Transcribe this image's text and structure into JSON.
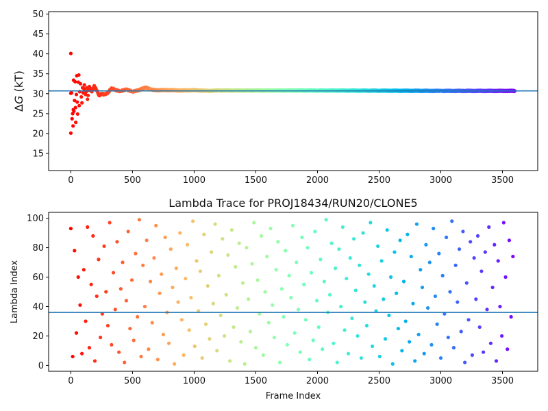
{
  "chart_data": [
    {
      "type": "scatter",
      "title": "",
      "xlabel": "",
      "ylabel_prefix": "Δ",
      "ylabel_var": "G",
      "ylabel_unit": " (kT)",
      "xlim": [
        -180,
        3786
      ],
      "ylim": [
        10.7,
        50.6
      ],
      "xticks": [
        0,
        500,
        1000,
        1500,
        2000,
        2500,
        3000,
        3500
      ],
      "yticks": [
        15,
        20,
        25,
        30,
        35,
        40,
        45,
        50
      ],
      "colormap": "rainbow_r",
      "hline": {
        "y": 30.7,
        "color": "#1f77b4"
      },
      "points": [
        [
          0,
          40.1
        ],
        [
          0,
          20.1
        ],
        [
          0,
          30.1
        ],
        [
          5,
          30.2
        ],
        [
          10,
          23.7
        ],
        [
          15,
          25
        ],
        [
          18,
          21.9
        ],
        [
          20,
          26
        ],
        [
          22,
          33.4
        ],
        [
          25,
          25.6
        ],
        [
          30,
          28.3
        ],
        [
          35,
          33
        ],
        [
          38,
          26.5
        ],
        [
          40,
          22.8
        ],
        [
          45,
          29.8
        ],
        [
          48,
          34.5
        ],
        [
          52,
          27.9
        ],
        [
          55,
          24.9
        ],
        [
          60,
          32.9
        ],
        [
          65,
          34.7
        ],
        [
          68,
          27
        ],
        [
          72,
          30.5
        ],
        [
          78,
          32.5
        ],
        [
          85,
          29.2
        ],
        [
          90,
          27.7
        ],
        [
          95,
          31.5
        ],
        [
          100,
          30.2
        ],
        [
          110,
          32.2
        ],
        [
          120,
          29.8
        ],
        [
          130,
          31.5
        ],
        [
          135,
          28.6
        ],
        [
          150,
          31.8
        ],
        [
          170,
          30.5
        ],
        [
          190,
          32
        ],
        [
          210,
          30.8
        ],
        [
          230,
          29.5
        ],
        [
          250,
          30
        ],
        [
          270,
          29.8
        ],
        [
          300,
          30.2
        ],
        [
          330,
          31.4
        ],
        [
          360,
          31
        ],
        [
          400,
          30.6
        ],
        [
          450,
          31.1
        ],
        [
          500,
          30.5
        ],
        [
          560,
          31
        ],
        [
          610,
          31.6
        ],
        [
          650,
          31
        ],
        [
          700,
          30.9
        ],
        [
          800,
          30.9
        ],
        [
          900,
          30.8
        ],
        [
          1000,
          30.9
        ],
        [
          1100,
          30.7
        ],
        [
          1200,
          30.8
        ],
        [
          1500,
          30.8
        ],
        [
          2000,
          30.8
        ],
        [
          2500,
          30.75
        ],
        [
          3000,
          30.7
        ],
        [
          3600,
          30.7
        ]
      ]
    },
    {
      "type": "scatter",
      "title": "Lambda Trace for PROJ18434/RUN20/CLONE5",
      "xlabel": "Frame Index",
      "ylabel": "Lambda Index",
      "xlim": [
        -180,
        3786
      ],
      "ylim": [
        -4,
        104
      ],
      "xticks": [
        0,
        500,
        1000,
        1500,
        2000,
        2500,
        3000,
        3500
      ],
      "yticks": [
        0,
        20,
        40,
        60,
        80,
        100
      ],
      "colormap": "rainbow_r",
      "hline": {
        "y": 36,
        "color": "#1f77b4"
      },
      "x_step": 15,
      "values": [
        93,
        6,
        78,
        22,
        60,
        41,
        8,
        65,
        30,
        94,
        12,
        55,
        88,
        3,
        47,
        72,
        19,
        35,
        81,
        50,
        27,
        97,
        14,
        63,
        38,
        84,
        9,
        52,
        70,
        2,
        44,
        91,
        25,
        58,
        17,
        76,
        33,
        99,
        6,
        68,
        40,
        85,
        11,
        57,
        29,
        73,
        95,
        4,
        49,
        62,
        21,
        87,
        36,
        15,
        79,
        53,
        1,
        66,
        43,
        90,
        31,
        7,
        59,
        82,
        24,
        46,
        98,
        13,
        71,
        37,
        64,
        5,
        89,
        28,
        54,
        18,
        77,
        42,
        96,
        10,
        61,
        34,
        86,
        20,
        48,
        75,
        3,
        92,
        26,
        67,
        39,
        83,
        16,
        56,
        1,
        80,
        45,
        23,
        69,
        97,
        12,
        58,
        35,
        88,
        7,
        50,
        74,
        29,
        93,
        41,
        19,
        65,
        84,
        2,
        52,
        33,
        78,
        14,
        61,
        46,
        95,
        22,
        70,
        38,
        9,
        87,
        55,
        31,
        80,
        4,
        63,
        17,
        91,
        44,
        26,
        72,
        11,
        57,
        99,
        36,
        48,
        83,
        15,
        66,
        2,
        79,
        40,
        94,
        24,
        59,
        8,
        73,
        32,
        86,
        51,
        20,
        68,
        5,
        90,
        43,
        27,
        62,
        97,
        13,
        54,
        37,
        81,
        6,
        71,
        45,
        18,
        92,
        34,
        60,
        1,
        77,
        49,
        25,
        85,
        10,
        57,
        30,
        89,
        16,
        74,
        42,
        3,
        96,
        21,
        65,
        53,
        8,
        82,
        39,
        70,
        14,
        93,
        47,
        28,
        76,
        5,
        61,
        35,
        87,
        19,
        50,
        98,
        12,
        68,
        43,
        79,
        23,
        91,
        2,
        56,
        31,
        84,
        7,
        73,
        45,
        88,
        26,
        64,
        9,
        77,
        38,
        94,
        15,
        53,
        82,
        3,
        71,
        40,
        20,
        97,
        60,
        11,
        85,
        33,
        74
      ]
    }
  ]
}
